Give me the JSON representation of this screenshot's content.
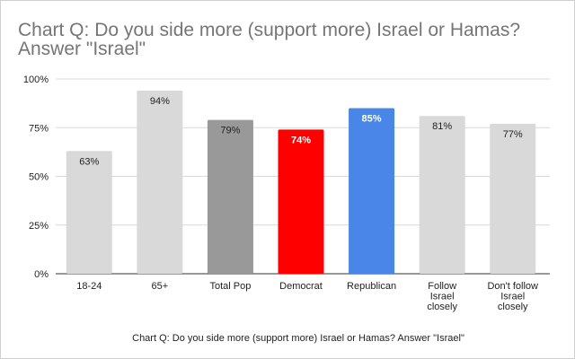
{
  "chart_data": {
    "type": "bar",
    "title": "Chart Q: Do you side more (support more) Israel or Hamas? Answer \"Israel\"",
    "title_lines": [
      "Chart Q: Do you side more (support more) Israel or Hamas?",
      "Answer \"Israel\""
    ],
    "xlabel": "Chart Q: Do you side more (support more) Israel or Hamas? Answer \"Israel\"",
    "ylabel": "",
    "ylim": [
      0,
      100
    ],
    "yticks": [
      0,
      25,
      50,
      75,
      100
    ],
    "ytick_labels": [
      "0%",
      "25%",
      "50%",
      "75%",
      "100%"
    ],
    "grid": true,
    "legend": "none",
    "categories": [
      [
        "18-24"
      ],
      [
        "65+"
      ],
      [
        "Total Pop"
      ],
      [
        "Democrat"
      ],
      [
        "Republican"
      ],
      [
        "Follow",
        "Israel",
        "closely"
      ],
      [
        "Don't follow",
        "Israel",
        "closely"
      ]
    ],
    "values": [
      63,
      94,
      79,
      74,
      85,
      81,
      77
    ],
    "value_labels": [
      "63%",
      "94%",
      "79%",
      "74%",
      "85%",
      "81%",
      "77%"
    ],
    "colors": [
      "#d9d9d9",
      "#d9d9d9",
      "#999999",
      "#ff0000",
      "#4a86e8",
      "#d9d9d9",
      "#d9d9d9"
    ],
    "label_colors": [
      "#222222",
      "#222222",
      "#222222",
      "#ffffff",
      "#ffffff",
      "#222222",
      "#222222"
    ]
  }
}
